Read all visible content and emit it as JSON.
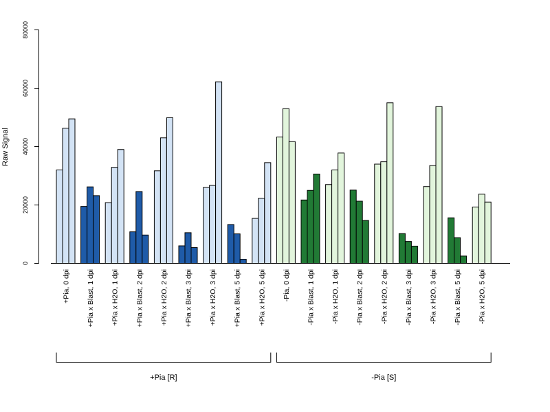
{
  "chart_data": {
    "type": "bar",
    "ylabel": "Raw Signal",
    "ylim": [
      0,
      80000
    ],
    "yticks": [
      0,
      20000,
      40000,
      60000,
      80000
    ],
    "categories": [
      "+Pia, 0 dpi",
      "+Pia x Blast, 1 dpi",
      "+Pia x H2O, 1 dpi",
      "+Pia x Blast, 2 dpi",
      "+Pia x H2O, 2 dpi",
      "+Pia x Blast, 3 dpi",
      "+Pia x H2O, 3 dpi",
      "+Pia x Blast, 5 dpi",
      "+Pia x H2O, 5 dpi",
      "-Pia, 0 dpi",
      "-Pia x Blast, 1 dpi",
      "-Pia x H2O, 1 dpi",
      "-Pia x Blast, 2 dpi",
      "-Pia x H2O, 2 dpi",
      "-Pia x Blast, 3 dpi",
      "-Pia x H2O, 3 dpi",
      "-Pia x Blast, 5 dpi",
      "-Pia x H2O, 5 dpi"
    ],
    "replicate_values": [
      [
        32000,
        46300,
        49500
      ],
      [
        19500,
        26200,
        23200
      ],
      [
        20800,
        32900,
        39000
      ],
      [
        10800,
        24600,
        9700
      ],
      [
        31700,
        43000,
        49900
      ],
      [
        6000,
        10500,
        5400
      ],
      [
        26000,
        26700,
        62200
      ],
      [
        13300,
        10100,
        1400
      ],
      [
        15400,
        22300,
        34500
      ],
      [
        43300,
        53000,
        41700
      ],
      [
        21700,
        25000,
        30600
      ],
      [
        27000,
        32000,
        37800
      ],
      [
        25100,
        21300,
        14700
      ],
      [
        34000,
        34800,
        55000
      ],
      [
        10200,
        7500,
        5900
      ],
      [
        26300,
        33500,
        53700
      ],
      [
        15600,
        8800,
        2500
      ],
      [
        19300,
        23700,
        21000
      ]
    ],
    "bar_colors": [
      "#d3e3f5",
      "#1f5ba8",
      "#d3e3f5",
      "#1f5ba8",
      "#d3e3f5",
      "#1f5ba8",
      "#d3e3f5",
      "#1f5ba8",
      "#d3e3f5",
      "#e2f5dc",
      "#217a35",
      "#e2f5dc",
      "#217a35",
      "#e2f5dc",
      "#217a35",
      "#e2f5dc",
      "#217a35",
      "#e2f5dc"
    ],
    "groups": [
      {
        "label": "+Pia [R]",
        "from": 0,
        "to": 8
      },
      {
        "label": "-Pia [S]",
        "from": 9,
        "to": 17
      }
    ]
  }
}
